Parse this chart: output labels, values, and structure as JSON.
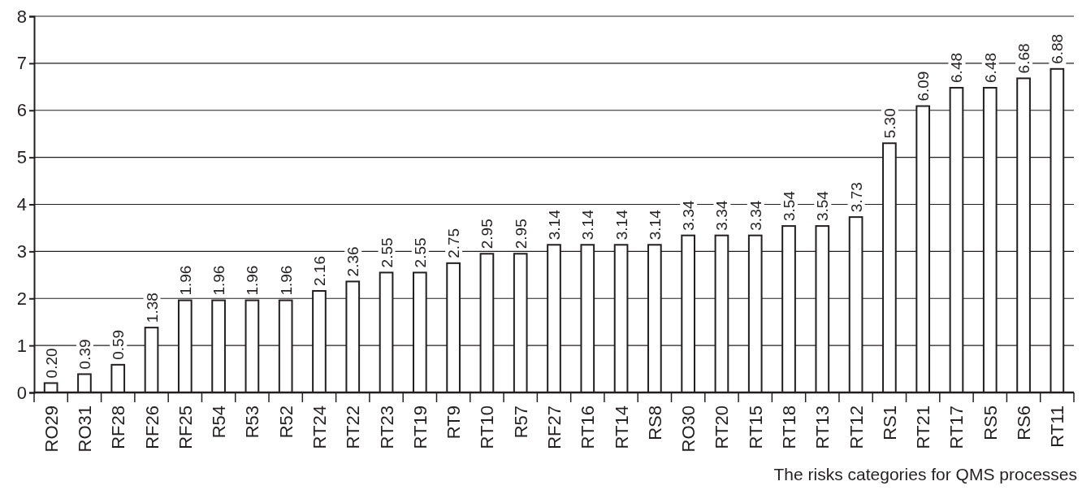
{
  "chart_data": {
    "type": "bar",
    "xlabel": "The risks categories for QMS processes",
    "categories": [
      "RO29",
      "RO31",
      "RF28",
      "RF26",
      "RF25",
      "R54",
      "R53",
      "R52",
      "RT24",
      "RT22",
      "RT23",
      "RT19",
      "RT9",
      "RT10",
      "R57",
      "RF27",
      "RT16",
      "RT14",
      "RS8",
      "RO30",
      "RT20",
      "RT15",
      "RT18",
      "RT13",
      "RT12",
      "RS1",
      "RT21",
      "RT17",
      "RS5",
      "RS6",
      "RT11"
    ],
    "values": [
      0.2,
      0.39,
      0.59,
      1.38,
      1.96,
      1.96,
      1.96,
      1.96,
      2.16,
      2.36,
      2.55,
      2.55,
      2.75,
      2.95,
      2.95,
      3.14,
      3.14,
      3.14,
      3.14,
      3.34,
      3.34,
      3.34,
      3.54,
      3.54,
      3.73,
      5.3,
      6.09,
      6.48,
      6.48,
      6.68,
      6.88
    ],
    "value_labels": [
      "0.20",
      "0.39",
      "0.59",
      "1.38",
      "1.96",
      "1.96",
      "1.96",
      "1.96",
      "2.16",
      "2.36",
      "2.55",
      "2.55",
      "2.75",
      "2.95",
      "2.95",
      "3.14",
      "3.14",
      "3.14",
      "3.14",
      "3.34",
      "3.34",
      "3.34",
      "3.54",
      "3.54",
      "3.73",
      "5.30",
      "6.09",
      "6.48",
      "6.48",
      "6.68",
      "6.88"
    ],
    "color": "#ffffff",
    "ylim": [
      0,
      8
    ],
    "yticks": [
      0,
      1,
      2,
      3,
      4,
      5,
      6,
      7,
      8
    ],
    "grid": "y"
  }
}
